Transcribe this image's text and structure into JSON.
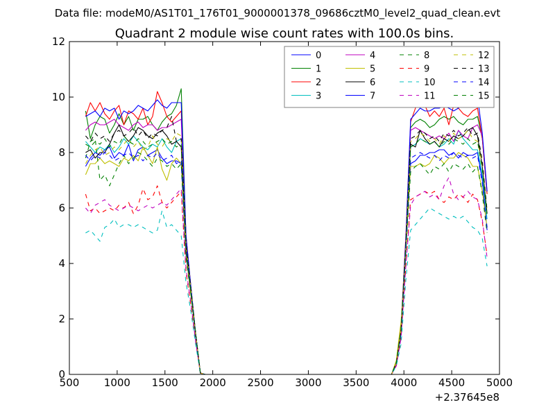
{
  "suptitle": "Data file: modeM0/AS1T01_176T01_9000001378_09686cztM0_level2_quad_clean.evt",
  "chart_data": {
    "type": "line",
    "title": "Quadrant 2 module wise count rates with 100.0s bins.",
    "xlabel": "",
    "ylabel": "",
    "x_offset_label": "+2.37645e8",
    "xlim": [
      500,
      5000
    ],
    "ylim": [
      0,
      12
    ],
    "xticks": [
      500,
      1000,
      1500,
      2000,
      2500,
      3000,
      3500,
      4000,
      4500,
      5000
    ],
    "yticks": [
      0,
      2,
      4,
      6,
      8,
      10,
      12
    ],
    "legend_position": "upper-right",
    "legend_columns": 4,
    "x": [
      670,
      720,
      770,
      820,
      870,
      920,
      970,
      1020,
      1070,
      1120,
      1170,
      1220,
      1270,
      1320,
      1370,
      1420,
      1470,
      1520,
      1570,
      1620,
      1670,
      1720,
      1770,
      1820,
      1870,
      1920,
      3870,
      3920,
      3970,
      4020,
      4070,
      4120,
      4170,
      4220,
      4270,
      4320,
      4370,
      4420,
      4470,
      4520,
      4570,
      4620,
      4670,
      4720,
      4770,
      4820,
      4870
    ],
    "series": [
      {
        "name": "0",
        "color": "#0000ff",
        "style": "solid",
        "values": [
          7.5,
          7.8,
          8.0,
          7.9,
          8.1,
          8.2,
          7.8,
          8.0,
          7.9,
          8.3,
          7.7,
          8.1,
          8.2,
          7.9,
          8.0,
          8.1,
          7.8,
          7.6,
          7.7,
          7.7,
          7.6,
          4.5,
          3.0,
          1.5,
          0.05,
          0.0,
          0.0,
          0.4,
          1.5,
          4.5,
          7.6,
          7.7,
          7.9,
          7.9,
          8.0,
          8.0,
          8.1,
          8.1,
          7.9,
          8.0,
          7.8,
          8.0,
          7.9,
          7.9,
          8.0,
          7.0,
          5.2
        ]
      },
      {
        "name": "1",
        "color": "#008000",
        "style": "solid",
        "values": [
          9.5,
          8.5,
          9.0,
          9.3,
          9.2,
          8.7,
          9.0,
          9.4,
          9.0,
          9.3,
          8.8,
          9.2,
          9.2,
          9.3,
          9.0,
          8.8,
          9.1,
          9.3,
          9.4,
          9.7,
          10.3,
          5.0,
          3.2,
          1.5,
          0.05,
          0.0,
          0.0,
          0.4,
          1.6,
          4.8,
          8.9,
          9.1,
          9.2,
          9.1,
          8.9,
          9.0,
          9.2,
          9.3,
          9.2,
          9.3,
          9.1,
          9.0,
          9.2,
          9.2,
          9.3,
          8.5,
          6.5
        ]
      },
      {
        "name": "2",
        "color": "#ff0000",
        "style": "solid",
        "values": [
          9.3,
          9.8,
          9.5,
          9.8,
          9.4,
          9.2,
          9.5,
          9.7,
          9.0,
          9.5,
          9.4,
          9.2,
          9.6,
          9.0,
          9.3,
          10.2,
          9.8,
          9.3,
          9.1,
          9.3,
          9.5,
          5.0,
          3.2,
          1.5,
          0.05,
          0.0,
          0.0,
          0.4,
          1.7,
          5.0,
          9.1,
          9.6,
          9.9,
          9.7,
          9.3,
          9.5,
          9.3,
          9.6,
          9.0,
          9.7,
          9.6,
          9.4,
          9.3,
          9.5,
          9.6,
          8.5,
          6.5
        ]
      },
      {
        "name": "3",
        "color": "#00bfbf",
        "style": "solid",
        "values": [
          8.4,
          8.2,
          8.0,
          8.2,
          8.1,
          8.3,
          8.0,
          8.2,
          8.5,
          8.3,
          8.6,
          8.4,
          8.2,
          8.1,
          8.3,
          8.2,
          8.5,
          8.2,
          8.0,
          8.4,
          8.5,
          4.6,
          3.0,
          1.5,
          0.05,
          0.0,
          0.0,
          0.4,
          1.5,
          4.5,
          8.2,
          8.3,
          8.5,
          8.4,
          8.3,
          8.4,
          8.2,
          8.3,
          8.5,
          8.3,
          8.8,
          8.5,
          8.3,
          8.1,
          8.1,
          7.2,
          5.6
        ]
      },
      {
        "name": "4",
        "color": "#bf00bf",
        "style": "solid",
        "values": [
          8.8,
          9.0,
          9.1,
          9.0,
          9.0,
          9.1,
          9.2,
          9.0,
          8.9,
          8.8,
          9.0,
          9.1,
          8.9,
          9.0,
          9.0,
          8.8,
          8.9,
          8.9,
          9.0,
          9.1,
          9.2,
          4.8,
          3.1,
          1.5,
          0.05,
          0.0,
          0.0,
          0.4,
          1.6,
          4.7,
          8.8,
          8.9,
          8.8,
          8.7,
          8.6,
          8.5,
          8.6,
          8.5,
          8.7,
          8.4,
          8.8,
          8.6,
          8.5,
          8.9,
          9.0,
          8.6,
          6.6
        ]
      },
      {
        "name": "5",
        "color": "#bfbf00",
        "style": "solid",
        "values": [
          7.2,
          7.6,
          7.6,
          7.8,
          7.6,
          7.7,
          7.6,
          7.5,
          7.8,
          7.7,
          7.9,
          7.7,
          8.2,
          7.9,
          7.6,
          8.2,
          7.4,
          7.0,
          7.6,
          7.8,
          7.6,
          4.3,
          2.9,
          1.4,
          0.05,
          0.0,
          0.0,
          0.5,
          1.9,
          4.5,
          7.5,
          7.5,
          7.6,
          7.5,
          7.6,
          7.9,
          7.8,
          7.6,
          7.8,
          7.8,
          8.0,
          7.9,
          7.8,
          7.5,
          7.5,
          6.6,
          5.3
        ]
      },
      {
        "name": "6",
        "color": "#000000",
        "style": "solid",
        "values": [
          8.0,
          8.1,
          7.8,
          8.0,
          8.0,
          8.3,
          8.7,
          9.0,
          8.6,
          8.4,
          8.6,
          8.9,
          8.8,
          8.6,
          8.5,
          8.7,
          8.8,
          8.6,
          8.3,
          8.4,
          8.2,
          4.6,
          3.0,
          1.5,
          0.05,
          0.0,
          0.0,
          0.4,
          1.6,
          4.7,
          8.3,
          8.2,
          8.8,
          8.5,
          8.3,
          8.4,
          8.2,
          8.5,
          8.4,
          8.6,
          8.5,
          8.6,
          8.8,
          8.9,
          8.6,
          7.5,
          5.8
        ]
      },
      {
        "name": "7",
        "color": "#0000ff",
        "style": "solid",
        "values": [
          9.3,
          9.4,
          9.5,
          9.3,
          9.6,
          9.5,
          9.6,
          9.2,
          9.5,
          9.4,
          9.5,
          9.7,
          9.6,
          9.5,
          9.7,
          9.9,
          9.7,
          9.6,
          9.8,
          9.8,
          9.8,
          5.0,
          3.2,
          1.5,
          0.05,
          0.0,
          0.0,
          0.4,
          1.6,
          4.9,
          9.2,
          9.4,
          9.6,
          9.5,
          9.5,
          9.6,
          9.6,
          9.7,
          9.6,
          9.5,
          9.6,
          9.8,
          9.7,
          10.0,
          10.0,
          8.7,
          6.6
        ]
      },
      {
        "name": "8",
        "color": "#008000",
        "style": "dashed",
        "values": [
          7.8,
          8.4,
          8.5,
          7.0,
          7.2,
          6.8,
          7.2,
          7.6,
          7.9,
          7.6,
          7.8,
          8.0,
          7.9,
          7.7,
          7.5,
          7.8,
          7.7,
          7.5,
          7.6,
          7.4,
          7.6,
          4.2,
          2.9,
          1.4,
          0.05,
          0.0,
          0.0,
          0.4,
          1.5,
          4.4,
          7.3,
          7.5,
          7.6,
          7.4,
          7.2,
          7.5,
          7.4,
          7.6,
          7.3,
          7.6,
          7.5,
          7.4,
          7.6,
          7.3,
          7.5,
          6.5,
          5.1
        ]
      },
      {
        "name": "9",
        "color": "#ff0000",
        "style": "dashed",
        "values": [
          6.5,
          5.9,
          6.0,
          5.8,
          5.9,
          6.0,
          5.9,
          6.1,
          6.0,
          6.2,
          5.8,
          6.1,
          6.7,
          6.3,
          6.4,
          6.8,
          6.2,
          6.0,
          6.2,
          6.4,
          6.6,
          3.7,
          2.5,
          1.2,
          0.05,
          0.0,
          0.0,
          0.3,
          1.3,
          3.9,
          6.3,
          6.4,
          6.5,
          6.6,
          6.5,
          6.6,
          6.3,
          6.2,
          6.4,
          6.3,
          6.5,
          6.4,
          6.2,
          6.5,
          6.3,
          5.5,
          4.3
        ]
      },
      {
        "name": "10",
        "color": "#00bfbf",
        "style": "dashed",
        "values": [
          5.1,
          5.2,
          5.0,
          4.8,
          5.3,
          5.4,
          5.6,
          5.3,
          5.4,
          5.4,
          5.3,
          5.4,
          5.3,
          5.2,
          5.1,
          5.2,
          5.9,
          5.3,
          5.4,
          5.2,
          5.0,
          3.3,
          2.3,
          1.1,
          0.05,
          0.0,
          0.0,
          0.3,
          1.1,
          3.4,
          5.2,
          5.4,
          5.6,
          5.8,
          6.0,
          5.9,
          5.8,
          5.7,
          5.6,
          5.7,
          5.6,
          5.7,
          5.5,
          5.3,
          5.2,
          4.9,
          3.9
        ]
      },
      {
        "name": "11",
        "color": "#bf00bf",
        "style": "dashed",
        "values": [
          6.0,
          5.8,
          6.1,
          6.2,
          6.3,
          6.1,
          6.0,
          5.9,
          6.0,
          6.1,
          6.0,
          5.9,
          6.0,
          6.1,
          6.0,
          6.1,
          6.2,
          6.1,
          6.3,
          6.5,
          6.7,
          3.8,
          2.6,
          1.2,
          0.05,
          0.0,
          0.0,
          0.3,
          1.3,
          3.9,
          6.1,
          6.4,
          6.5,
          6.6,
          6.4,
          6.5,
          6.3,
          6.8,
          7.1,
          6.5,
          6.3,
          6.4,
          6.6,
          6.4,
          6.3,
          5.6,
          4.2
        ]
      },
      {
        "name": "12",
        "color": "#bfbf00",
        "style": "dashed",
        "values": [
          7.6,
          7.9,
          8.1,
          8.2,
          7.9,
          8.0,
          8.2,
          8.1,
          8.3,
          8.5,
          8.2,
          8.4,
          8.1,
          8.2,
          8.6,
          8.3,
          8.2,
          8.5,
          8.4,
          8.7,
          8.6,
          4.7,
          3.1,
          1.5,
          0.05,
          0.0,
          0.0,
          0.4,
          1.6,
          4.6,
          8.4,
          8.5,
          8.7,
          8.6,
          8.4,
          8.5,
          8.3,
          8.6,
          8.4,
          8.7,
          8.5,
          8.6,
          8.8,
          8.5,
          8.4,
          7.6,
          5.9
        ]
      },
      {
        "name": "13",
        "color": "#000000",
        "style": "dashed",
        "values": [
          8.6,
          8.4,
          8.7,
          8.5,
          8.6,
          8.4,
          8.7,
          8.8,
          8.6,
          8.7,
          8.9,
          8.6,
          8.8,
          8.5,
          8.7,
          8.6,
          8.8,
          8.9,
          9.3,
          8.4,
          8.5,
          4.7,
          3.1,
          1.5,
          0.05,
          0.0,
          0.0,
          0.4,
          1.6,
          4.7,
          8.5,
          8.6,
          8.8,
          8.7,
          8.5,
          8.6,
          8.4,
          8.7,
          8.6,
          8.8,
          8.6,
          8.7,
          8.9,
          8.6,
          8.7,
          7.7,
          5.9
        ]
      },
      {
        "name": "14",
        "color": "#0000ff",
        "style": "dashed",
        "values": [
          7.9,
          7.7,
          7.9,
          7.8,
          8.0,
          7.9,
          7.7,
          7.8,
          7.9,
          8.0,
          7.8,
          7.9,
          7.7,
          7.9,
          7.8,
          8.0,
          7.7,
          7.8,
          7.9,
          7.6,
          7.7,
          4.4,
          3.0,
          1.4,
          0.05,
          0.0,
          0.0,
          0.4,
          1.5,
          4.4,
          7.8,
          7.9,
          8.0,
          7.9,
          7.8,
          7.9,
          7.7,
          7.9,
          7.8,
          8.0,
          7.9,
          7.8,
          7.9,
          7.8,
          7.9,
          6.9,
          5.3
        ]
      },
      {
        "name": "15",
        "color": "#008000",
        "style": "dashed",
        "values": [
          8.3,
          8.2,
          8.4,
          8.3,
          8.5,
          8.2,
          8.4,
          8.3,
          8.6,
          8.4,
          8.3,
          8.5,
          8.4,
          8.2,
          8.3,
          8.4,
          8.5,
          8.3,
          8.4,
          8.2,
          8.3,
          4.6,
          3.0,
          1.5,
          0.05,
          0.0,
          0.0,
          0.4,
          1.6,
          4.6,
          8.2,
          8.3,
          8.5,
          8.4,
          8.3,
          8.4,
          8.2,
          8.4,
          8.3,
          8.5,
          8.4,
          8.3,
          8.5,
          8.3,
          8.4,
          7.4,
          5.7
        ]
      }
    ]
  }
}
